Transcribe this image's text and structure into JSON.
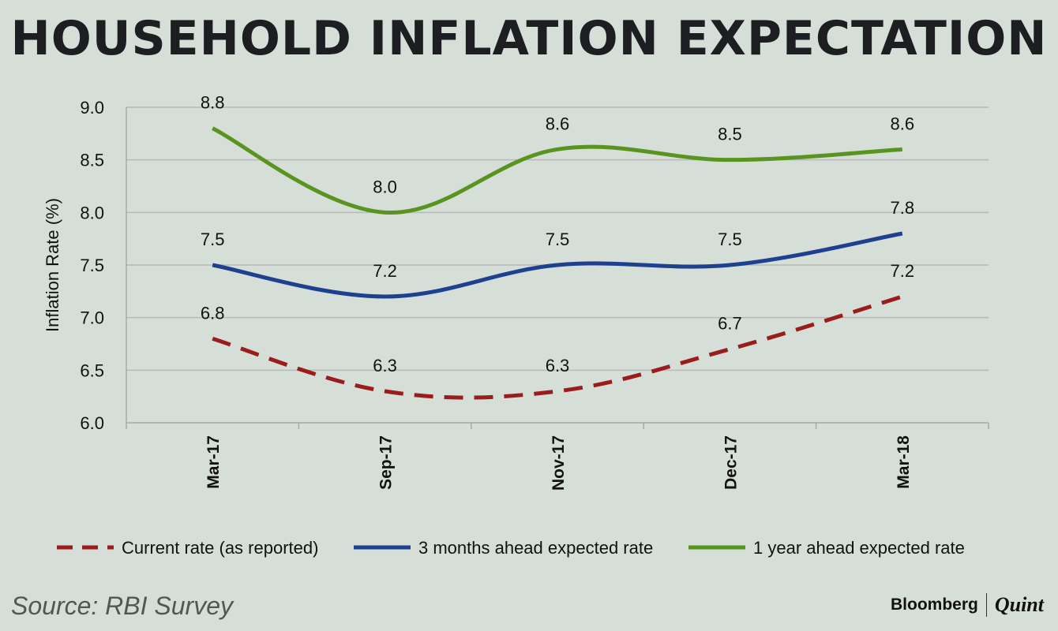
{
  "title": "HOUSEHOLD INFLATION EXPECTATION",
  "source": "Source: RBI Survey",
  "brand": {
    "name1": "Bloomberg",
    "name2": "Quint"
  },
  "chart_data": {
    "type": "line",
    "title": "HOUSEHOLD INFLATION EXPECTATION",
    "xlabel": "",
    "ylabel": "Inflation Rate (%)",
    "categories": [
      "Mar-17",
      "Sep-17",
      "Nov-17",
      "Dec-17",
      "Mar-18"
    ],
    "ylim": [
      6.0,
      9.0
    ],
    "yticks": [
      "6.0",
      "6.5",
      "7.0",
      "7.5",
      "8.0",
      "8.5",
      "9.0"
    ],
    "grid": true,
    "legend_position": "bottom",
    "series": [
      {
        "name": "Current rate (as reported)",
        "values": [
          6.8,
          6.3,
          6.3,
          6.7,
          7.2
        ],
        "labels": [
          "6.8",
          "6.3",
          "6.3",
          "6.7",
          "7.2"
        ],
        "color": "#9b1c1c",
        "style": "dashed"
      },
      {
        "name": "3 months ahead expected rate",
        "values": [
          7.5,
          7.2,
          7.5,
          7.5,
          7.8
        ],
        "labels": [
          "7.5",
          "7.2",
          "7.5",
          "7.5",
          "7.8"
        ],
        "color": "#1f3f8f",
        "style": "solid"
      },
      {
        "name": "1 year ahead expected rate",
        "values": [
          8.8,
          8.0,
          8.6,
          8.5,
          8.6
        ],
        "labels": [
          "8.8",
          "8.0",
          "8.6",
          "8.5",
          "8.6"
        ],
        "color": "#5a9420",
        "style": "solid"
      }
    ]
  }
}
